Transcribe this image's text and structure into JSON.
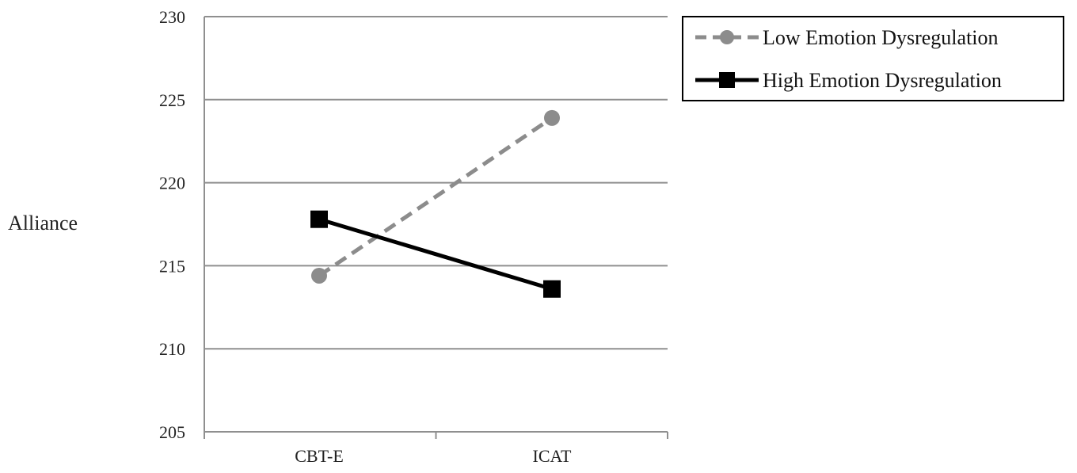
{
  "chart_data": {
    "type": "line",
    "title": "",
    "xlabel": "",
    "ylabel": "Alliance",
    "ylim": [
      205,
      230
    ],
    "yticks": [
      "205",
      "210",
      "215",
      "220",
      "225",
      "230"
    ],
    "categories": [
      "CBT-E",
      "ICAT"
    ],
    "grid": true,
    "legend_position": "top-right, outside plot",
    "series": [
      {
        "name": "Low Emotion Dysregulation",
        "values": [
          214.4,
          223.9
        ],
        "color": "#8c8c8c",
        "line_style": "dashed",
        "marker": "circle"
      },
      {
        "name": "High Emotion Dysregulation",
        "values": [
          217.8,
          213.6
        ],
        "color": "#000000",
        "line_style": "solid",
        "marker": "square"
      }
    ]
  }
}
